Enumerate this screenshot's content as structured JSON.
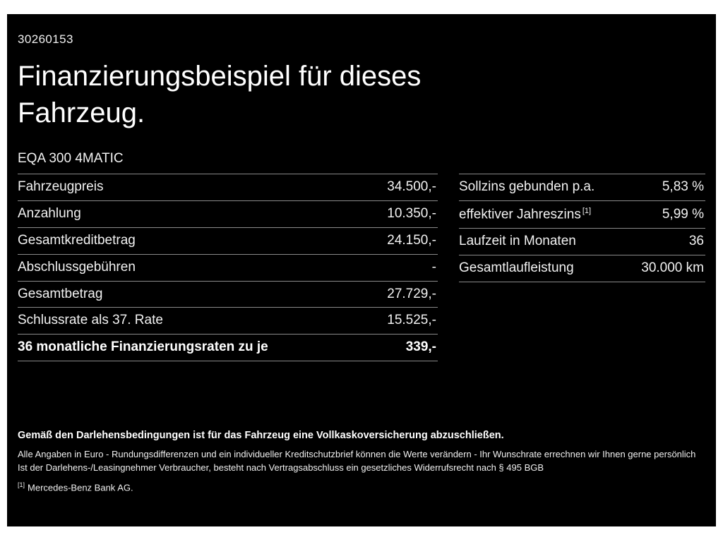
{
  "page": {
    "doc_id": "30260153",
    "title": "Finanzierungsbeispiel für dieses Fahrzeug.",
    "model": "EQA 300 4MATIC"
  },
  "finance_table": {
    "rows": [
      {
        "label": "Fahrzeugpreis",
        "value": "34.500,-"
      },
      {
        "label": "Anzahlung",
        "value": "10.350,-"
      },
      {
        "label": "Gesamtkreditbetrag",
        "value": "24.150,-"
      },
      {
        "label": "Abschlussgebühren",
        "value": "-"
      },
      {
        "label": "Gesamtbetrag",
        "value": "27.729,-"
      },
      {
        "label": "Schlussrate als 37. Rate",
        "value": "15.525,-"
      },
      {
        "label": "36 monatliche Finanzierungsraten zu je",
        "value": "339,-"
      }
    ]
  },
  "conditions_table": {
    "rows": [
      {
        "label": "Sollzins gebunden p.a.",
        "value": "5,83 %"
      },
      {
        "label": "effektiver Jahreszins",
        "footnote_marker": "[1]",
        "value": "5,99 %"
      },
      {
        "label": "Laufzeit in Monaten",
        "value": "36"
      },
      {
        "label": "Gesamtlaufleistung",
        "value": "30.000 km"
      }
    ]
  },
  "footer": {
    "insurance_note": "Gemäß den Darlehensbedingungen ist für das Fahrzeug eine Vollkaskoversicherung abzuschließen.",
    "disclaimer_line1": "Alle Angaben in Euro - Rundungsdifferenzen und ein individueller Kreditschutzbrief können die Werte verändern - Ihr Wunschrate errechnen wir Ihnen gerne persönlich",
    "disclaimer_line2": "Ist der Darlehens-/Leasingnehmer Verbraucher, besteht nach Vertragsabschluss ein gesetzliches Widerrufsrecht nach § 495 BGB",
    "footnote_marker": "[1]",
    "footnote_text": "Mercedes-Benz Bank AG."
  },
  "colors": {
    "background": "#000000",
    "text": "#ffffff",
    "divider": "#8a8a8a"
  }
}
